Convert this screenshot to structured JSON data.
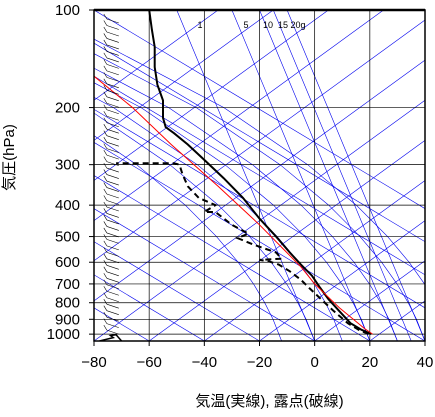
{
  "chart_data": {
    "type": "line",
    "title": "",
    "xlabel": "気温(実線), 露点(破線)",
    "ylabel": "気圧(hPa)",
    "xlim": [
      -80,
      40
    ],
    "ylim": [
      1050,
      100
    ],
    "yscale": "log",
    "x_ticks": [
      -80,
      -60,
      -40,
      -20,
      0,
      20,
      40
    ],
    "y_ticks": [
      100,
      200,
      300,
      400,
      500,
      600,
      700,
      800,
      900,
      1000
    ],
    "mixing_ratio_labels": [
      "1",
      "5",
      "10",
      "15",
      "20g"
    ],
    "colors": {
      "temperature": "#000000",
      "dewpoint": "#000000",
      "parcel": "#ff0000",
      "background_lines": "#0000ee",
      "grid": "#000000"
    },
    "series": [
      {
        "key": "temperature",
        "style": "solid",
        "points": [
          [
            20.5,
            1000
          ],
          [
            17,
            970
          ],
          [
            13,
            925
          ],
          [
            9,
            850
          ],
          [
            5,
            780
          ],
          [
            2,
            720
          ],
          [
            -1,
            660
          ],
          [
            -5,
            610
          ],
          [
            -9,
            560
          ],
          [
            -14,
            500
          ],
          [
            -20,
            440
          ],
          [
            -26,
            380
          ],
          [
            -33,
            330
          ],
          [
            -40,
            290
          ],
          [
            -46,
            260
          ],
          [
            -51,
            240
          ],
          [
            -54,
            230
          ],
          [
            -55,
            215
          ],
          [
            -55,
            190
          ],
          [
            -57,
            170
          ],
          [
            -58,
            150
          ],
          [
            -58,
            130
          ],
          [
            -59,
            115
          ],
          [
            -60,
            100
          ]
        ]
      },
      {
        "key": "dewpoint",
        "style": "dashed",
        "points": [
          [
            19.5,
            1000
          ],
          [
            16,
            970
          ],
          [
            12,
            925
          ],
          [
            7,
            850
          ],
          [
            3,
            790
          ],
          [
            -2,
            720
          ],
          [
            -5,
            680
          ],
          [
            -9,
            640
          ],
          [
            -13,
            610
          ],
          [
            -17,
            595
          ],
          [
            -20,
            590
          ],
          [
            -12,
            585
          ],
          [
            -14,
            560
          ],
          [
            -22,
            530
          ],
          [
            -28,
            505
          ],
          [
            -24,
            490
          ],
          [
            -30,
            460
          ],
          [
            -36,
            420
          ],
          [
            -40,
            420
          ],
          [
            -36,
            400
          ],
          [
            -42,
            380
          ],
          [
            -46,
            350
          ],
          [
            -48,
            320
          ],
          [
            -49,
            300
          ],
          [
            -51,
            297
          ],
          [
            -54,
            297
          ],
          [
            -62,
            297
          ],
          [
            -72,
            297
          ]
        ]
      },
      {
        "key": "parcel",
        "style": "solid",
        "points": [
          [
            21,
            1000
          ],
          [
            18,
            960
          ],
          [
            14,
            900
          ],
          [
            9,
            830
          ],
          [
            5,
            770
          ],
          [
            0,
            700
          ],
          [
            -5,
            620
          ],
          [
            -11,
            550
          ],
          [
            -20,
            460
          ],
          [
            -35,
            350
          ],
          [
            -52,
            260
          ],
          [
            -66,
            200
          ],
          [
            -80,
            160
          ]
        ]
      }
    ],
    "wind_barbs_note": "",
    "lower_curve": [
      [
        -78,
        1050
      ],
      [
        -73,
        1025
      ],
      [
        -74,
        1010
      ],
      [
        -72,
        1005
      ],
      [
        -70,
        1050
      ]
    ]
  }
}
